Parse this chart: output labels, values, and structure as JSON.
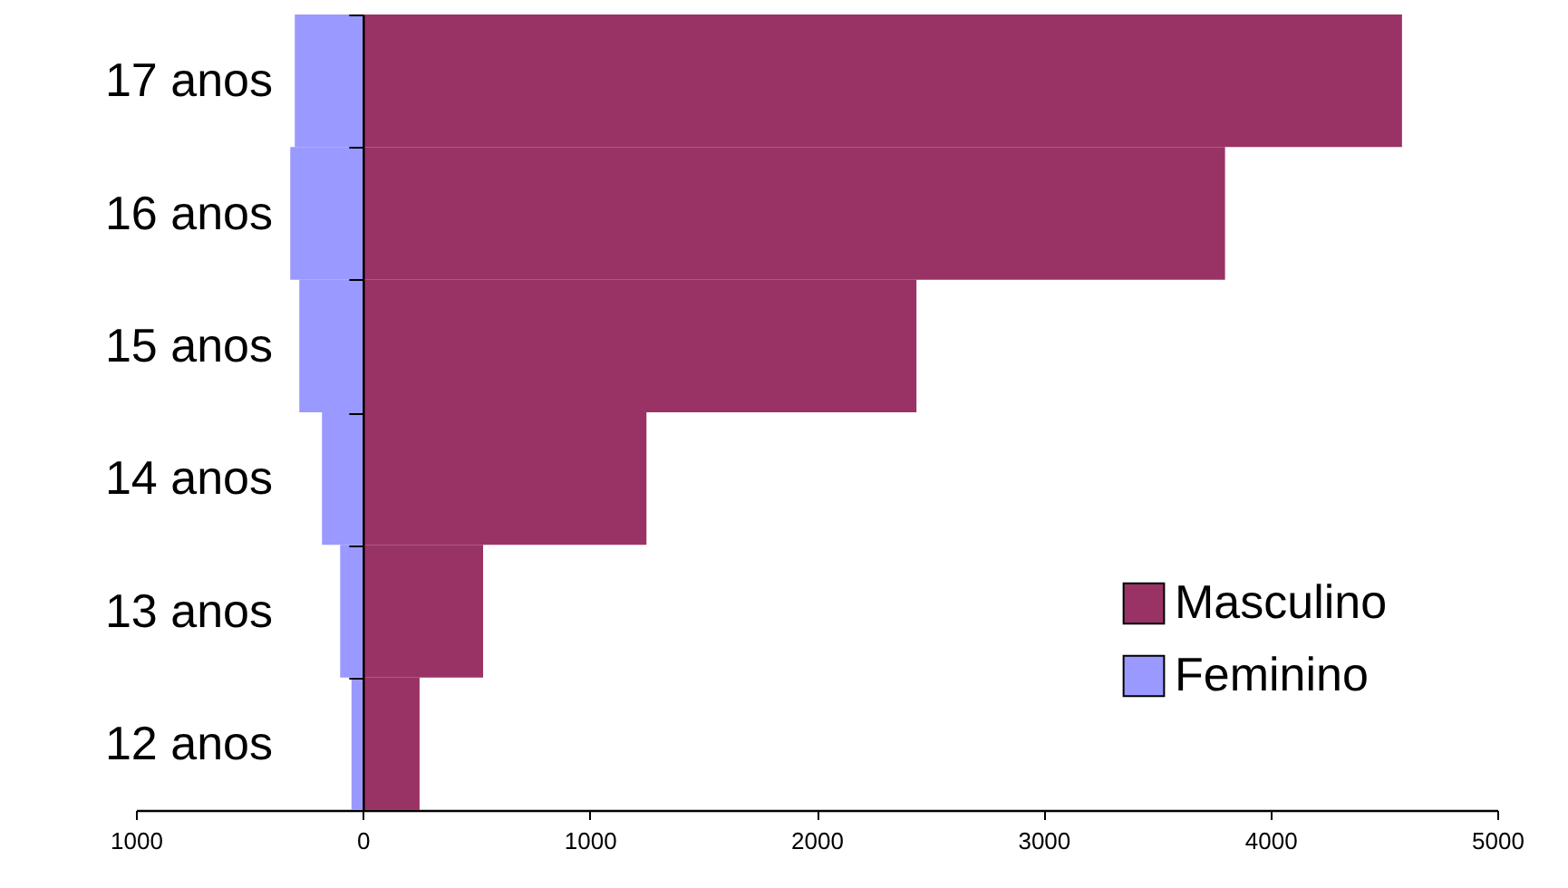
{
  "chart_data": {
    "type": "bar",
    "orientation": "horizontal",
    "categories": [
      "17 anos",
      "16 anos",
      "15 anos",
      "14 anos",
      "13 anos",
      "12 anos"
    ],
    "series": [
      {
        "name": "Masculino",
        "color": "#993366",
        "values": [
          4580,
          3800,
          2440,
          1250,
          530,
          250
        ]
      },
      {
        "name": "Feminino",
        "color": "#9999ff",
        "values": [
          -300,
          -320,
          -280,
          -180,
          -100,
          -50
        ]
      }
    ],
    "xlim": [
      -1000,
      5000
    ],
    "xticks": [
      {
        "value": -1000,
        "label": "1000"
      },
      0,
      1000,
      2000,
      3000,
      4000,
      5000
    ],
    "stacked": true,
    "legend": "bottom right",
    "grid": false
  }
}
